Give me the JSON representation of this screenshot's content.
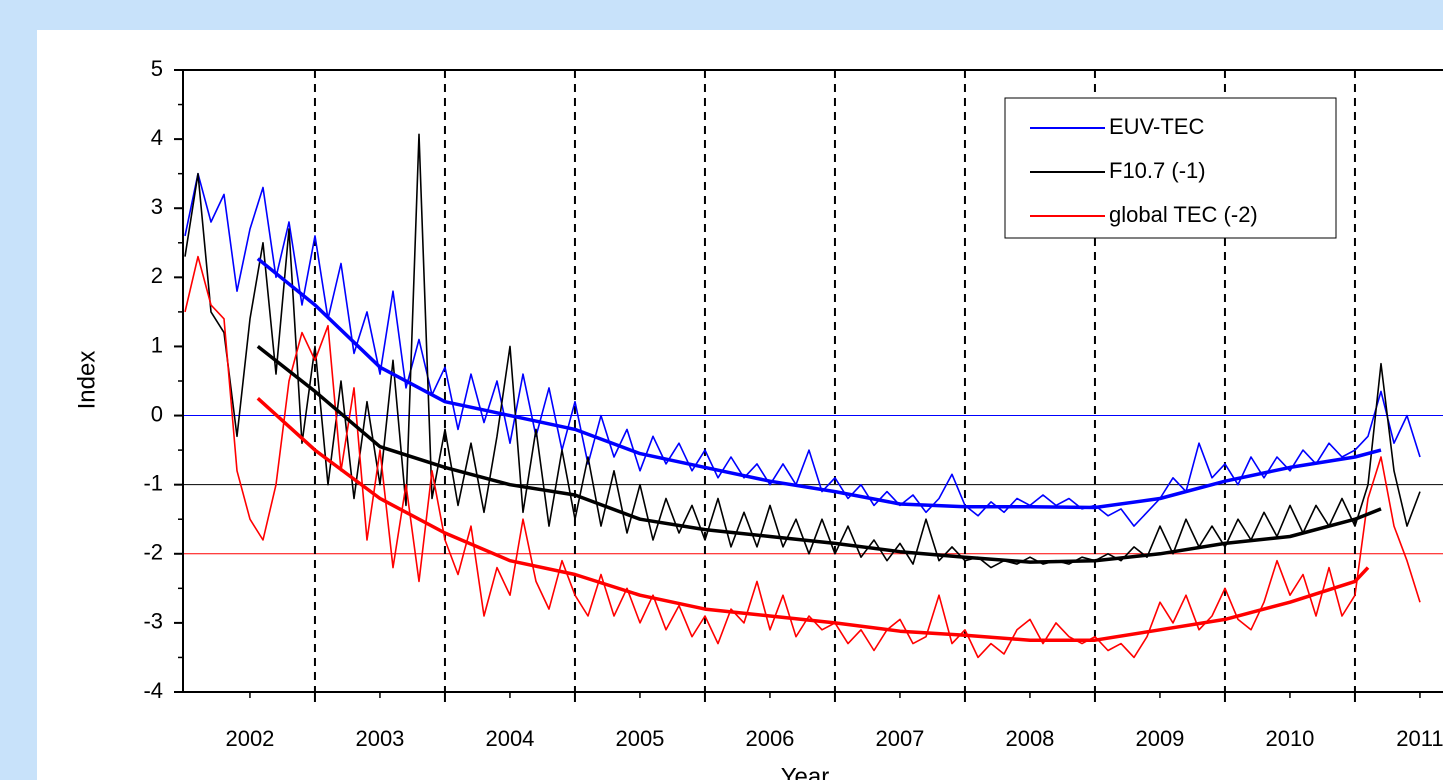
{
  "chart_data": {
    "type": "line",
    "xlabel": "Year",
    "ylabel": "Index",
    "xlim": [
      2001.985,
      2011.7
    ],
    "ylim": [
      -4,
      5
    ],
    "yticks": [
      -4,
      -3,
      -2,
      -1,
      0,
      1,
      2,
      3,
      4,
      5
    ],
    "xticks": [
      {
        "value": 2002.5,
        "label": "2002"
      },
      {
        "value": 2003.5,
        "label": "2003"
      },
      {
        "value": 2004.5,
        "label": "2004"
      },
      {
        "value": 2005.5,
        "label": "2005"
      },
      {
        "value": 2006.5,
        "label": "2006"
      },
      {
        "value": 2007.5,
        "label": "2007"
      },
      {
        "value": 2008.5,
        "label": "2008"
      },
      {
        "value": 2009.5,
        "label": "2009"
      },
      {
        "value": 2010.5,
        "label": "2010"
      },
      {
        "value": 2011.5,
        "label": "2011"
      }
    ],
    "vlines": [
      2003,
      2004,
      2005,
      2006,
      2007,
      2008,
      2009,
      2010,
      2011
    ],
    "hlines": [
      {
        "value": 0,
        "color": "#0000ff"
      },
      {
        "value": -1,
        "color": "#000000"
      },
      {
        "value": -2,
        "color": "#ff0000"
      }
    ],
    "legend": "upper right",
    "x": [
      2002.0,
      2002.1,
      2002.2,
      2002.3,
      2002.4,
      2002.5,
      2002.6,
      2002.7,
      2002.8,
      2002.9,
      2003.0,
      2003.1,
      2003.2,
      2003.3,
      2003.4,
      2003.5,
      2003.6,
      2003.7,
      2003.8,
      2003.9,
      2004.0,
      2004.1,
      2004.2,
      2004.3,
      2004.4,
      2004.5,
      2004.6,
      2004.7,
      2004.8,
      2004.9,
      2005.0,
      2005.1,
      2005.2,
      2005.3,
      2005.4,
      2005.5,
      2005.6,
      2005.7,
      2005.8,
      2005.9,
      2006.0,
      2006.1,
      2006.2,
      2006.3,
      2006.4,
      2006.5,
      2006.6,
      2006.7,
      2006.8,
      2006.9,
      2007.0,
      2007.1,
      2007.2,
      2007.3,
      2007.4,
      2007.5,
      2007.6,
      2007.7,
      2007.8,
      2007.9,
      2008.0,
      2008.1,
      2008.2,
      2008.3,
      2008.4,
      2008.5,
      2008.6,
      2008.7,
      2008.8,
      2008.9,
      2009.0,
      2009.1,
      2009.2,
      2009.3,
      2009.4,
      2009.5,
      2009.6,
      2009.7,
      2009.8,
      2009.9,
      2010.0,
      2010.1,
      2010.2,
      2010.3,
      2010.4,
      2010.5,
      2010.6,
      2010.7,
      2010.8,
      2010.9,
      2011.0,
      2011.1,
      2011.2,
      2011.3,
      2011.4,
      2011.5
    ],
    "series": [
      {
        "name": "EUV-TEC",
        "color": "#0000ff",
        "values": [
          2.6,
          3.5,
          2.8,
          3.2,
          1.8,
          2.7,
          3.3,
          2.0,
          2.8,
          1.6,
          2.6,
          1.4,
          2.2,
          0.9,
          1.5,
          0.6,
          1.8,
          0.4,
          1.1,
          0.3,
          0.7,
          -0.2,
          0.6,
          -0.1,
          0.5,
          -0.4,
          0.6,
          -0.3,
          0.4,
          -0.5,
          0.2,
          -0.7,
          0.0,
          -0.6,
          -0.2,
          -0.8,
          -0.3,
          -0.7,
          -0.4,
          -0.8,
          -0.5,
          -0.9,
          -0.6,
          -0.9,
          -0.7,
          -1.0,
          -0.7,
          -1.0,
          -0.5,
          -1.1,
          -0.9,
          -1.2,
          -1.0,
          -1.3,
          -1.1,
          -1.3,
          -1.15,
          -1.4,
          -1.2,
          -0.85,
          -1.3,
          -1.45,
          -1.25,
          -1.4,
          -1.2,
          -1.3,
          -1.15,
          -1.3,
          -1.2,
          -1.35,
          -1.3,
          -1.45,
          -1.35,
          -1.6,
          -1.4,
          -1.2,
          -0.9,
          -1.1,
          -0.4,
          -0.9,
          -0.7,
          -1.0,
          -0.6,
          -0.9,
          -0.6,
          -0.8,
          -0.5,
          -0.7,
          -0.4,
          -0.6,
          -0.5,
          -0.3,
          0.35,
          -0.4,
          0.0,
          -0.6
        ],
        "trend": {
          "x": [
            2002.56,
            2003,
            2003.5,
            2004,
            2004.5,
            2005,
            2005.5,
            2006,
            2006.5,
            2007,
            2007.5,
            2008,
            2008.5,
            2009,
            2009.5,
            2010,
            2010.5,
            2011,
            2011.2
          ],
          "values": [
            2.27,
            1.6,
            0.7,
            0.2,
            0.0,
            -0.2,
            -0.55,
            -0.75,
            -0.95,
            -1.1,
            -1.28,
            -1.32,
            -1.32,
            -1.33,
            -1.2,
            -0.95,
            -0.75,
            -0.6,
            -0.5
          ]
        }
      },
      {
        "name": "F10.7 (-1)",
        "color": "#000000",
        "values": [
          2.3,
          3.5,
          1.5,
          1.2,
          -0.3,
          1.4,
          2.5,
          0.6,
          2.7,
          -0.4,
          1.0,
          -1.0,
          0.5,
          -1.2,
          0.2,
          -1.0,
          0.8,
          -1.3,
          4.07,
          -1.2,
          -0.2,
          -1.3,
          -0.4,
          -1.4,
          -0.3,
          1.0,
          -1.4,
          -0.2,
          -1.6,
          -0.5,
          -1.5,
          -0.6,
          -1.6,
          -0.8,
          -1.7,
          -1.0,
          -1.8,
          -1.2,
          -1.7,
          -1.3,
          -1.8,
          -1.2,
          -1.9,
          -1.4,
          -1.9,
          -1.3,
          -1.9,
          -1.5,
          -2.0,
          -1.5,
          -2.0,
          -1.6,
          -2.05,
          -1.8,
          -2.1,
          -1.85,
          -2.15,
          -1.5,
          -2.1,
          -1.9,
          -2.1,
          -2.05,
          -2.2,
          -2.1,
          -2.15,
          -2.05,
          -2.15,
          -2.1,
          -2.15,
          -2.05,
          -2.1,
          -2.0,
          -2.1,
          -1.9,
          -2.05,
          -1.6,
          -2.0,
          -1.5,
          -1.9,
          -1.6,
          -1.9,
          -1.5,
          -1.8,
          -1.4,
          -1.75,
          -1.3,
          -1.7,
          -1.3,
          -1.6,
          -1.2,
          -1.6,
          -1.0,
          0.75,
          -0.8,
          -1.6,
          -1.1
        ],
        "trend": {
          "x": [
            2002.56,
            2003,
            2003.5,
            2004,
            2004.5,
            2005,
            2005.5,
            2006,
            2006.5,
            2007,
            2007.5,
            2008,
            2008.5,
            2009,
            2009.5,
            2010,
            2010.5,
            2011,
            2011.2
          ],
          "values": [
            1.0,
            0.35,
            -0.45,
            -0.75,
            -1.0,
            -1.15,
            -1.5,
            -1.65,
            -1.75,
            -1.85,
            -1.97,
            -2.05,
            -2.12,
            -2.1,
            -2.0,
            -1.85,
            -1.75,
            -1.5,
            -1.35
          ]
        }
      },
      {
        "name": "global TEC (-2)",
        "color": "#ff0000",
        "values": [
          1.5,
          2.3,
          1.6,
          1.4,
          -0.8,
          -1.5,
          -1.8,
          -1.0,
          0.5,
          1.2,
          0.8,
          1.3,
          -0.8,
          0.4,
          -1.8,
          -0.5,
          -2.2,
          -1.0,
          -2.4,
          -0.8,
          -1.8,
          -2.3,
          -1.6,
          -2.9,
          -2.2,
          -2.6,
          -1.5,
          -2.4,
          -2.8,
          -2.1,
          -2.6,
          -2.9,
          -2.3,
          -2.9,
          -2.5,
          -3.0,
          -2.6,
          -3.1,
          -2.75,
          -3.2,
          -2.9,
          -3.3,
          -2.8,
          -3.0,
          -2.4,
          -3.1,
          -2.6,
          -3.2,
          -2.9,
          -3.1,
          -3.0,
          -3.3,
          -3.1,
          -3.4,
          -3.1,
          -2.95,
          -3.3,
          -3.2,
          -2.6,
          -3.3,
          -3.1,
          -3.5,
          -3.3,
          -3.45,
          -3.1,
          -2.95,
          -3.3,
          -3.0,
          -3.2,
          -3.3,
          -3.2,
          -3.4,
          -3.3,
          -3.5,
          -3.2,
          -2.7,
          -3.0,
          -2.6,
          -3.1,
          -2.9,
          -2.5,
          -2.95,
          -3.1,
          -2.7,
          -2.1,
          -2.6,
          -2.3,
          -2.9,
          -2.2,
          -2.9,
          -2.6,
          -1.2,
          -0.6,
          -1.6,
          -2.1,
          -2.7
        ],
        "trend": {
          "x": [
            2002.56,
            2003,
            2003.5,
            2004,
            2004.5,
            2005,
            2005.5,
            2006,
            2006.5,
            2007,
            2007.5,
            2008,
            2008.5,
            2009,
            2009.5,
            2010,
            2010.5,
            2011,
            2011.1
          ],
          "values": [
            0.25,
            -0.5,
            -1.2,
            -1.7,
            -2.1,
            -2.3,
            -2.6,
            -2.8,
            -2.9,
            -3.0,
            -3.12,
            -3.18,
            -3.25,
            -3.25,
            -3.1,
            -2.95,
            -2.7,
            -2.4,
            -2.2
          ]
        }
      }
    ]
  }
}
